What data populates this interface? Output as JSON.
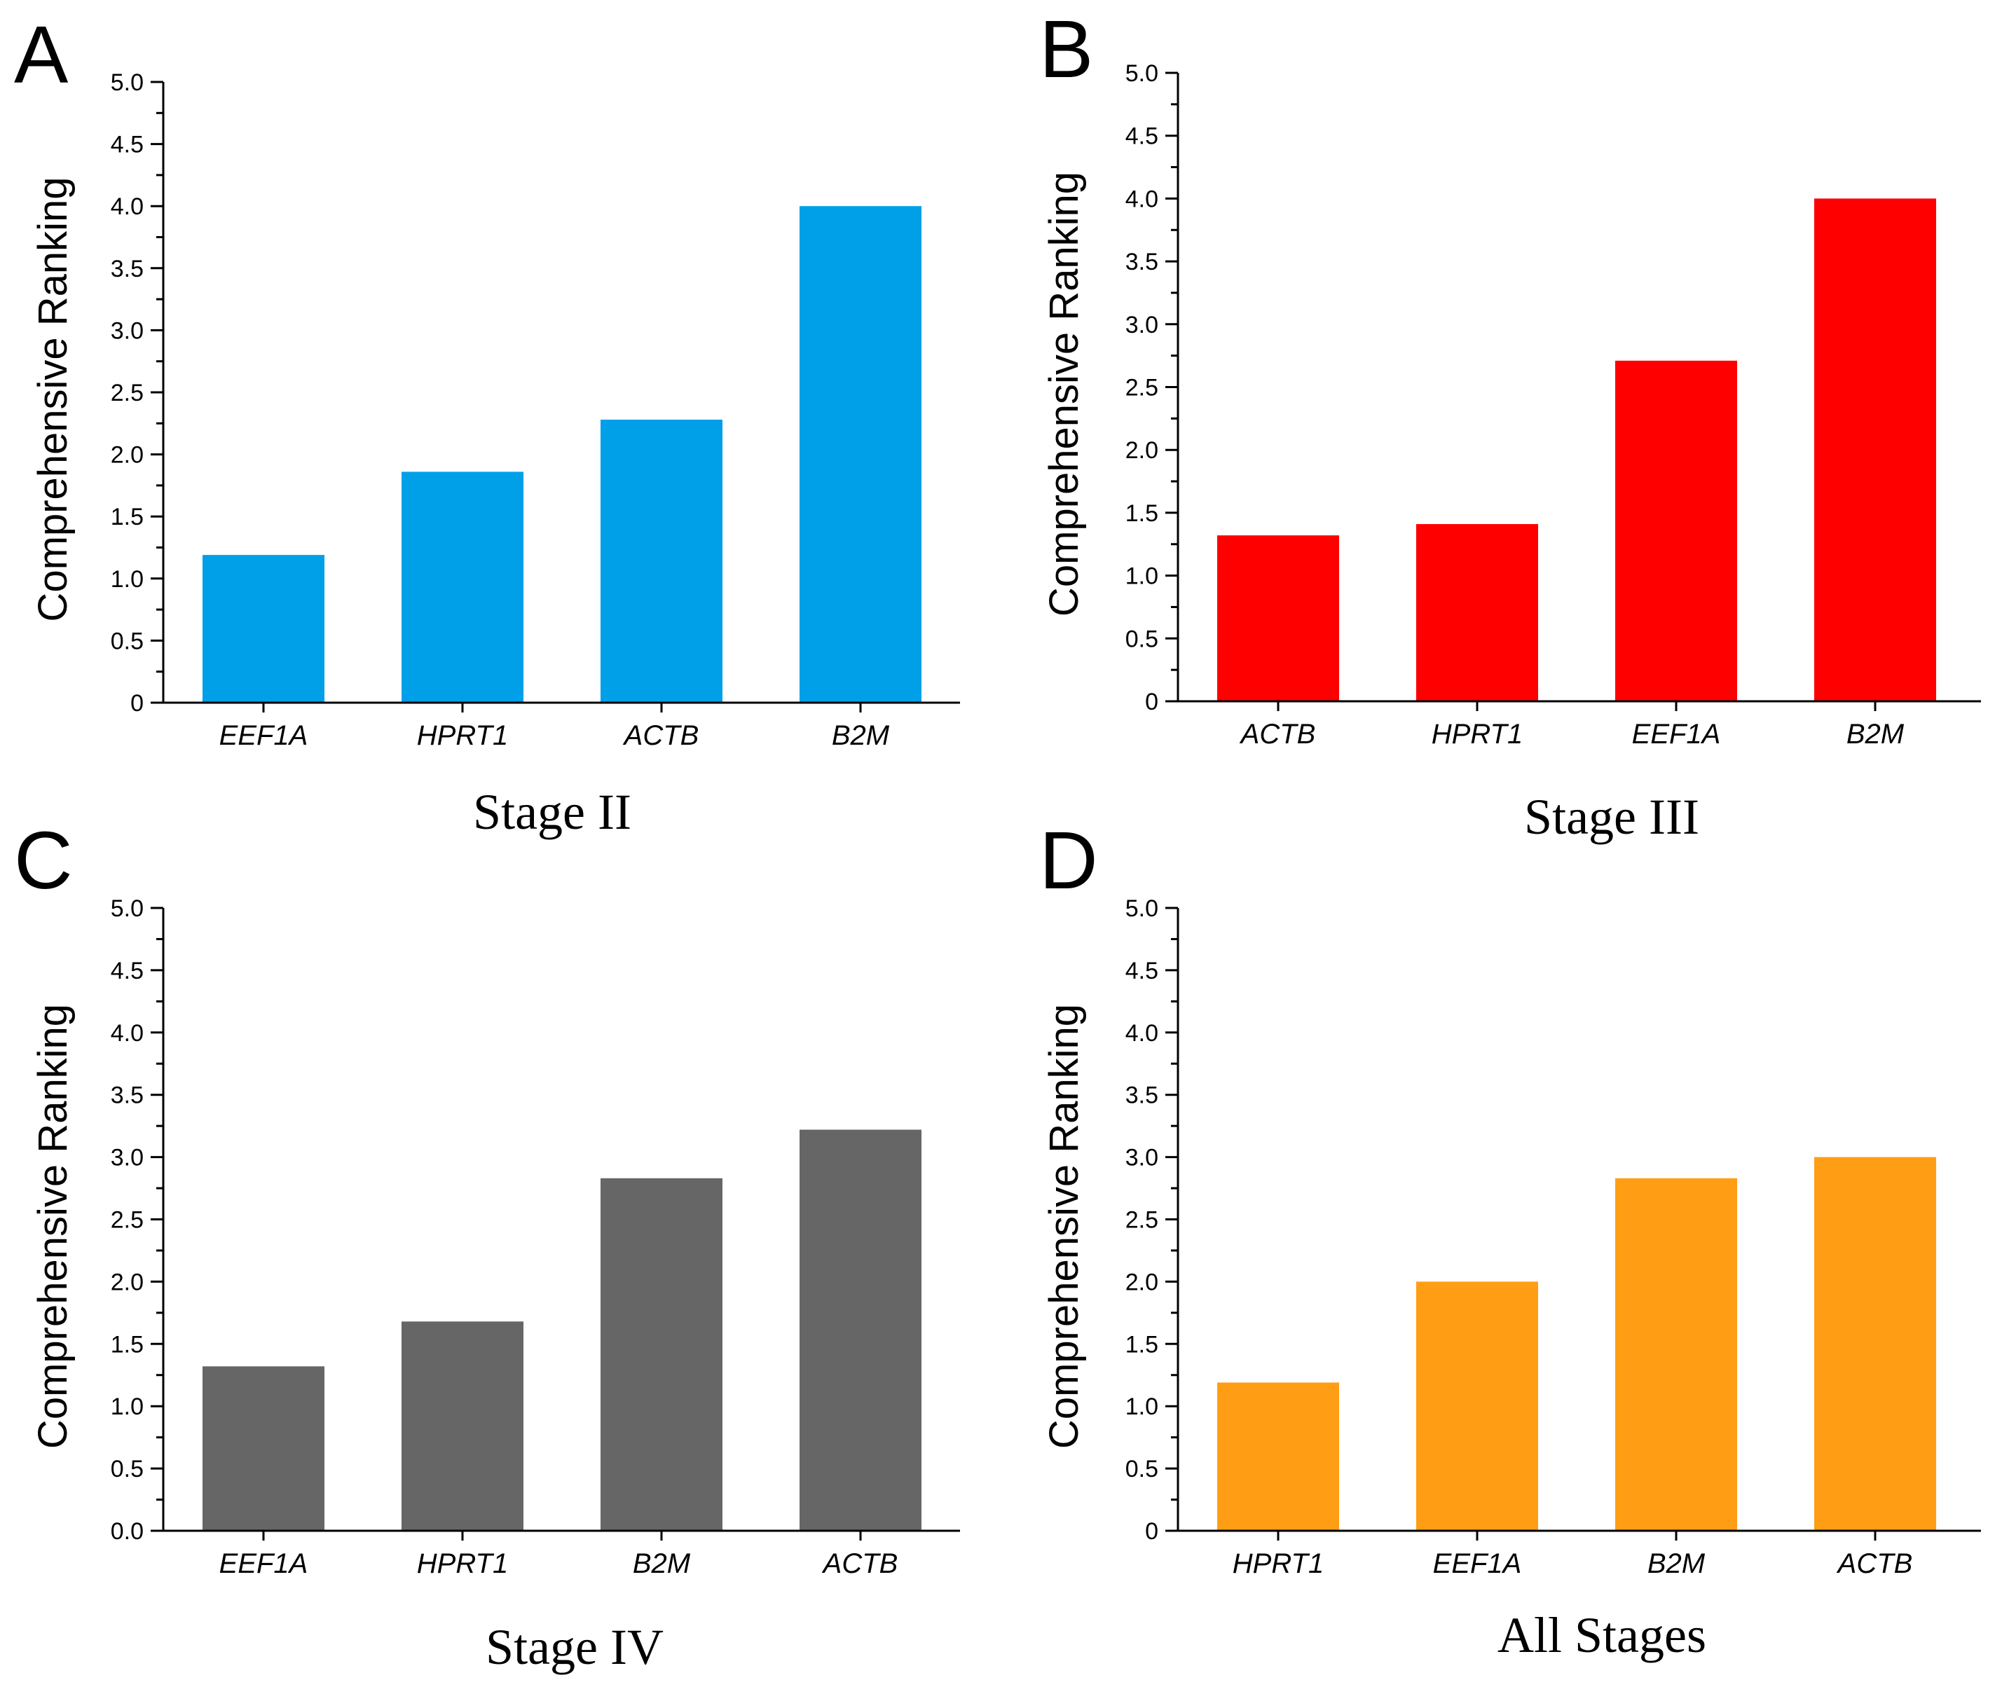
{
  "colors": {
    "A": "#00a0e9",
    "B": "#ff0000",
    "C": "#666666",
    "D": "#ff9e14"
  },
  "chart_data": [
    {
      "panel": "A",
      "type": "bar",
      "title": "Stage II",
      "xlabel": "",
      "ylabel": "Comprehensive Ranking",
      "categories": [
        "EEF1A",
        "HPRT1",
        "ACTB",
        "B2M"
      ],
      "values": [
        1.19,
        1.86,
        2.28,
        4.0
      ],
      "ylim": [
        0,
        5.0
      ],
      "yticks": [
        "0",
        "0.5",
        "1.0",
        "1.5",
        "2.0",
        "2.5",
        "3.0",
        "3.5",
        "4.0",
        "4.5",
        "5.0"
      ],
      "grid": false,
      "legend": "none"
    },
    {
      "panel": "B",
      "type": "bar",
      "title": "Stage III",
      "xlabel": "",
      "ylabel": "Comprehensive Ranking",
      "categories": [
        "ACTB",
        "HPRT1",
        "EEF1A",
        "B2M"
      ],
      "values": [
        1.32,
        1.41,
        2.71,
        4.0
      ],
      "ylim": [
        0,
        5.0
      ],
      "yticks": [
        "0",
        "0.5",
        "1.0",
        "1.5",
        "2.0",
        "2.5",
        "3.0",
        "3.5",
        "4.0",
        "4.5",
        "5.0"
      ],
      "grid": false,
      "legend": "none"
    },
    {
      "panel": "C",
      "type": "bar",
      "title": "Stage IV",
      "xlabel": "",
      "ylabel": "Comprehensive Ranking",
      "categories": [
        "EEF1A",
        "HPRT1",
        "B2M",
        "ACTB"
      ],
      "values": [
        1.32,
        1.68,
        2.83,
        3.22
      ],
      "ylim": [
        0,
        5.0
      ],
      "yticks": [
        "0.0",
        "0.5",
        "1.0",
        "1.5",
        "2.0",
        "2.5",
        "3.0",
        "3.5",
        "4.0",
        "4.5",
        "5.0"
      ],
      "grid": false,
      "legend": "none"
    },
    {
      "panel": "D",
      "type": "bar",
      "title": "All Stages",
      "xlabel": "",
      "ylabel": "Comprehensive Ranking",
      "categories": [
        "HPRT1",
        "EEF1A",
        "B2M",
        "ACTB"
      ],
      "values": [
        1.19,
        2.0,
        2.83,
        3.0
      ],
      "ylim": [
        0,
        5.0
      ],
      "yticks": [
        "0",
        "0.5",
        "1.0",
        "1.5",
        "2.0",
        "2.5",
        "3.0",
        "3.5",
        "4.0",
        "4.5",
        "5.0"
      ],
      "grid": false,
      "legend": "none"
    }
  ]
}
